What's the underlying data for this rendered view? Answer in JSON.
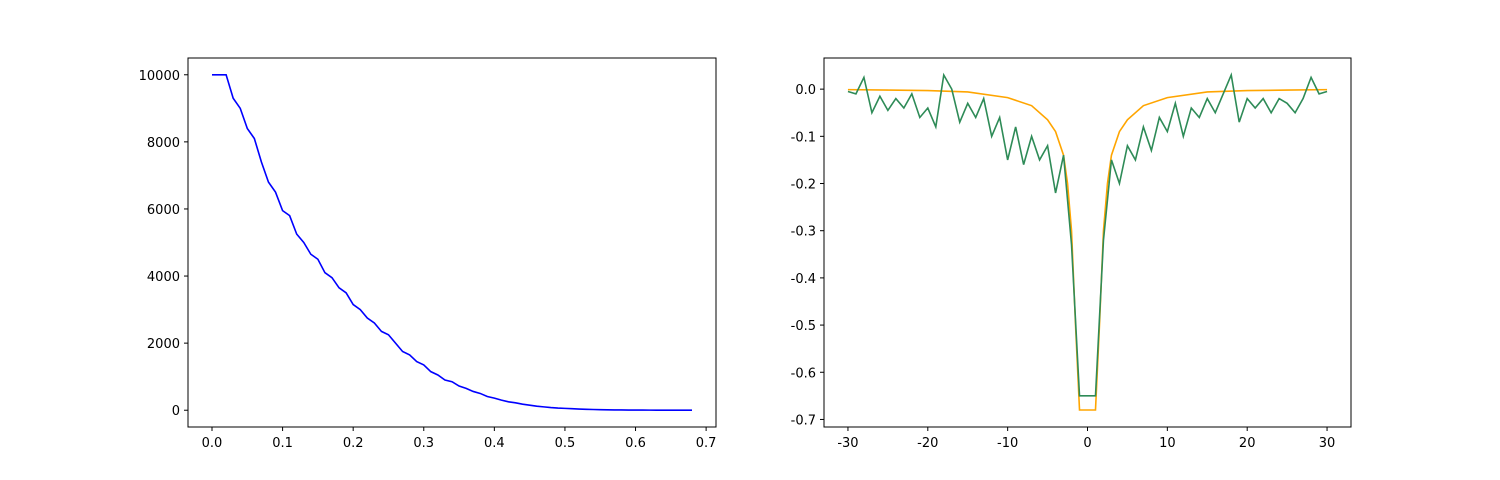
{
  "chart_data": [
    {
      "type": "line",
      "xlim": [
        -0.034,
        0.714
      ],
      "ylim": [
        -500,
        10500
      ],
      "xticks": [
        {
          "value": 0,
          "label": "0.0"
        },
        0.1,
        0.2,
        0.3,
        0.4,
        0.5,
        0.6,
        0.7
      ],
      "yticks": [
        0,
        2000,
        4000,
        6000,
        8000,
        10000
      ],
      "series": [
        {
          "color": "#0000ff",
          "x": [
            0.0,
            0.01,
            0.02,
            0.03,
            0.04,
            0.05,
            0.06,
            0.07,
            0.08,
            0.09,
            0.1,
            0.11,
            0.12,
            0.13,
            0.14,
            0.15,
            0.16,
            0.17,
            0.18,
            0.19,
            0.2,
            0.21,
            0.22,
            0.23,
            0.24,
            0.25,
            0.26,
            0.27,
            0.28,
            0.29,
            0.3,
            0.31,
            0.32,
            0.33,
            0.34,
            0.35,
            0.36,
            0.37,
            0.38,
            0.39,
            0.4,
            0.41,
            0.42,
            0.43,
            0.44,
            0.45,
            0.46,
            0.47,
            0.48,
            0.49,
            0.5,
            0.51,
            0.52,
            0.53,
            0.54,
            0.55,
            0.56,
            0.57,
            0.58,
            0.59,
            0.6,
            0.61,
            0.62,
            0.63,
            0.64,
            0.65,
            0.66,
            0.67,
            0.68
          ],
          "values": [
            10000,
            10000,
            10000,
            9300,
            9000,
            8400,
            8100,
            7400,
            6800,
            6500,
            5950,
            5800,
            5250,
            5000,
            4650,
            4500,
            4100,
            3950,
            3650,
            3500,
            3150,
            3000,
            2750,
            2600,
            2350,
            2250,
            2000,
            1750,
            1650,
            1450,
            1350,
            1150,
            1050,
            900,
            850,
            720,
            650,
            560,
            500,
            410,
            360,
            300,
            250,
            220,
            180,
            150,
            120,
            100,
            80,
            65,
            55,
            45,
            35,
            28,
            22,
            17,
            13,
            10,
            8,
            6,
            5,
            4,
            3,
            2,
            2,
            1,
            1,
            1,
            0
          ]
        }
      ]
    },
    {
      "type": "line",
      "xlim": [
        -33,
        33
      ],
      "ylim": [
        -0.716,
        0.066
      ],
      "xticks": [
        -30,
        -20,
        -10,
        0,
        10,
        20,
        30
      ],
      "yticks": [
        {
          "value": 0,
          "label": "0.0"
        },
        -0.1,
        -0.2,
        -0.3,
        -0.4,
        -0.5,
        -0.6,
        -0.7
      ],
      "series": [
        {
          "color": "#ffa500",
          "x": [
            -30,
            -25,
            -20,
            -15,
            -10,
            -7,
            -5,
            -4,
            -3,
            -2.5,
            -2,
            -1.5,
            -1,
            1,
            1.5,
            2,
            2.5,
            3,
            4,
            5,
            7,
            10,
            15,
            20,
            25,
            30
          ],
          "values": [
            -0.001,
            -0.002,
            -0.003,
            -0.006,
            -0.018,
            -0.035,
            -0.065,
            -0.09,
            -0.14,
            -0.2,
            -0.3,
            -0.5,
            -0.68,
            -0.68,
            -0.5,
            -0.3,
            -0.2,
            -0.14,
            -0.09,
            -0.065,
            -0.035,
            -0.018,
            -0.006,
            -0.003,
            -0.002,
            -0.001
          ]
        },
        {
          "color": "#2e8b57",
          "x": [
            -30,
            -29,
            -28,
            -27,
            -26,
            -25,
            -24,
            -23,
            -22,
            -21,
            -20,
            -19,
            -18,
            -17,
            -16,
            -15,
            -14,
            -13,
            -12,
            -11,
            -10,
            -9,
            -8,
            -7,
            -6,
            -5,
            -4,
            -3,
            -2,
            -1,
            0,
            1,
            2,
            3,
            4,
            5,
            6,
            7,
            8,
            9,
            10,
            11,
            12,
            13,
            14,
            15,
            16,
            17,
            18,
            19,
            20,
            21,
            22,
            23,
            24,
            25,
            26,
            27,
            28,
            29,
            30
          ],
          "values": [
            -0.005,
            -0.01,
            0.025,
            -0.05,
            -0.015,
            -0.045,
            -0.02,
            -0.04,
            -0.01,
            -0.06,
            -0.04,
            -0.08,
            0.03,
            0.0,
            -0.07,
            -0.03,
            -0.06,
            -0.02,
            -0.1,
            -0.06,
            -0.15,
            -0.08,
            -0.16,
            -0.1,
            -0.15,
            -0.12,
            -0.22,
            -0.14,
            -0.33,
            -0.65,
            -0.65,
            -0.65,
            -0.32,
            -0.15,
            -0.2,
            -0.12,
            -0.15,
            -0.08,
            -0.13,
            -0.06,
            -0.09,
            -0.03,
            -0.1,
            -0.04,
            -0.06,
            -0.02,
            -0.05,
            -0.01,
            0.03,
            -0.07,
            -0.02,
            -0.04,
            -0.02,
            -0.05,
            -0.02,
            -0.03,
            -0.05,
            -0.02,
            0.025,
            -0.01,
            -0.005
          ]
        }
      ]
    }
  ]
}
